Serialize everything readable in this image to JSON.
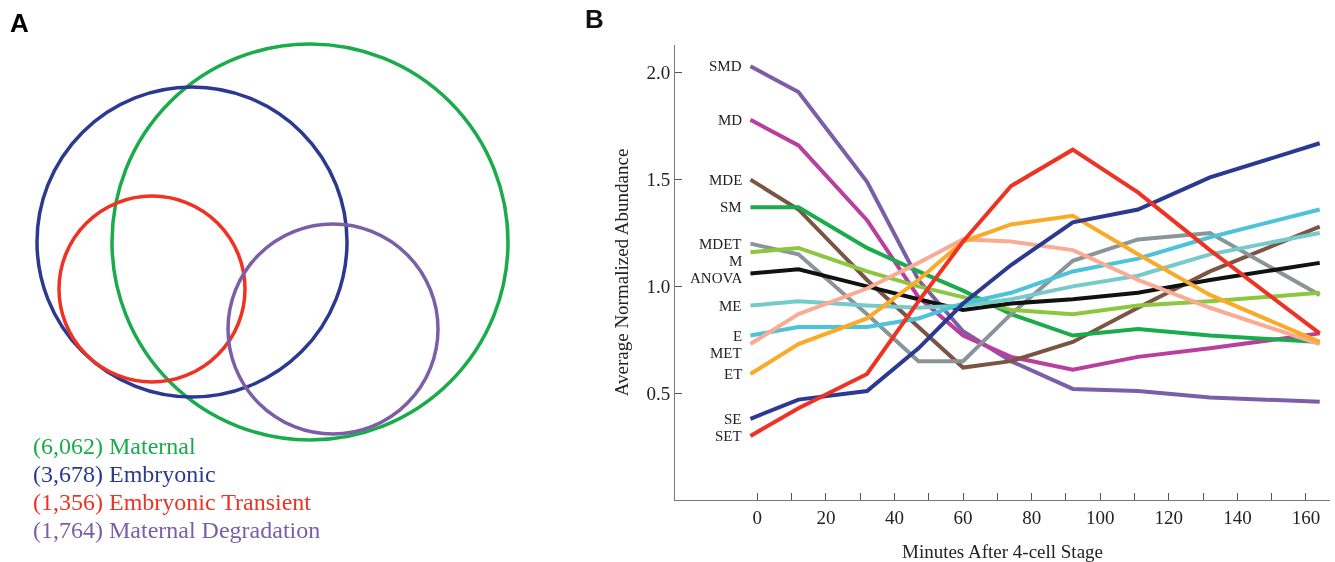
{
  "chart_data": [
    {
      "type": "other",
      "annotations": [
        "A"
      ],
      "categories": [
        "(6,062) Maternal",
        "(3,678) Embryonic",
        "(1,356) Embryonic Transient",
        "(1,764) Maternal Degradation"
      ],
      "colors": [
        "#1aab4b",
        "#2b3990",
        "#ee3224",
        "#7b5ea7"
      ]
    },
    {
      "type": "line",
      "annotations": [
        "B"
      ],
      "xlabel": "Minutes After 4-cell Stage",
      "ylabel": "Average Normalized Abundance",
      "x": [
        -2,
        12,
        32,
        47,
        60,
        74,
        92,
        111,
        132,
        164
      ],
      "xlim": [
        -24,
        167
      ],
      "xticks": [
        0,
        {
          "value": 10,
          "label": null
        },
        20,
        {
          "value": 30,
          "label": null
        },
        40,
        {
          "value": 50,
          "label": null
        },
        60,
        {
          "value": 70,
          "label": null
        },
        80,
        {
          "value": 90,
          "label": null
        },
        100,
        {
          "value": 110,
          "label": null
        },
        120,
        {
          "value": 130,
          "label": null
        },
        140,
        {
          "value": 150,
          "label": null
        },
        160
      ],
      "ylim": [
        0,
        2.13
      ],
      "yticks": [
        {
          "value": 0.5,
          "label": "0.5"
        },
        {
          "value": 1,
          "label": "1.0"
        },
        {
          "value": 1.5,
          "label": "1.5"
        },
        {
          "value": 2,
          "label": "2.0"
        }
      ],
      "grid": false,
      "legend": false,
      "line_style": "solid",
      "marker": "none",
      "series": [
        {
          "name": "SMD",
          "color": "#7b5ea7",
          "values": [
            2.03,
            1.91,
            1.49,
            1.03,
            0.79,
            0.65,
            0.52,
            0.51,
            0.48,
            0.46
          ]
        },
        {
          "name": "MD",
          "color": "#b83f9e",
          "values": [
            1.78,
            1.66,
            1.31,
            0.95,
            0.77,
            0.67,
            0.61,
            0.67,
            0.71,
            0.78
          ]
        },
        {
          "name": "MDE",
          "color": "#7a5543",
          "values": [
            1.5,
            1.36,
            1.03,
            0.81,
            0.62,
            0.65,
            0.74,
            0.9,
            1.07,
            1.28
          ]
        },
        {
          "name": "SM",
          "color": "#1aab4b",
          "values": [
            1.37,
            1.37,
            1.18,
            1.07,
            0.98,
            0.87,
            0.77,
            0.8,
            0.77,
            0.74
          ]
        },
        {
          "name": "MDET",
          "color": "#8a959a",
          "values": [
            1.2,
            1.15,
            0.87,
            0.65,
            0.65,
            0.87,
            1.12,
            1.22,
            1.25,
            0.96
          ]
        },
        {
          "name": "M",
          "color": "#8dc63f",
          "values": [
            1.16,
            1.18,
            1.07,
            1.0,
            0.95,
            0.89,
            0.87,
            0.91,
            0.93,
            0.97
          ]
        },
        {
          "name": "ANOVA",
          "color": "#111111",
          "values": [
            1.06,
            1.08,
            1.0,
            0.94,
            0.89,
            0.92,
            0.94,
            0.97,
            1.03,
            1.11
          ]
        },
        {
          "name": "ME",
          "color": "#76cac8",
          "values": [
            0.91,
            0.93,
            0.91,
            0.9,
            0.91,
            0.94,
            1.0,
            1.05,
            1.15,
            1.25
          ]
        },
        {
          "name": "E",
          "color": "#4dc3d9",
          "values": [
            0.77,
            0.81,
            0.81,
            0.85,
            0.92,
            0.97,
            1.07,
            1.13,
            1.23,
            1.36
          ]
        },
        {
          "name": "MET",
          "color": "#f9ab96",
          "values": [
            0.73,
            0.87,
            0.99,
            1.11,
            1.22,
            1.21,
            1.17,
            1.03,
            0.9,
            0.73
          ]
        },
        {
          "name": "ET",
          "color": "#fbaa28",
          "values": [
            0.59,
            0.73,
            0.85,
            1.03,
            1.21,
            1.29,
            1.33,
            1.15,
            0.96,
            0.74
          ]
        },
        {
          "name": "SE",
          "color": "#2b3990",
          "values": [
            0.38,
            0.47,
            0.51,
            0.71,
            0.92,
            1.1,
            1.3,
            1.36,
            1.51,
            1.67
          ]
        },
        {
          "name": "SET",
          "color": "#ee3224",
          "values": [
            0.3,
            0.43,
            0.59,
            0.93,
            1.21,
            1.47,
            1.64,
            1.44,
            1.17,
            0.78
          ]
        }
      ]
    }
  ]
}
